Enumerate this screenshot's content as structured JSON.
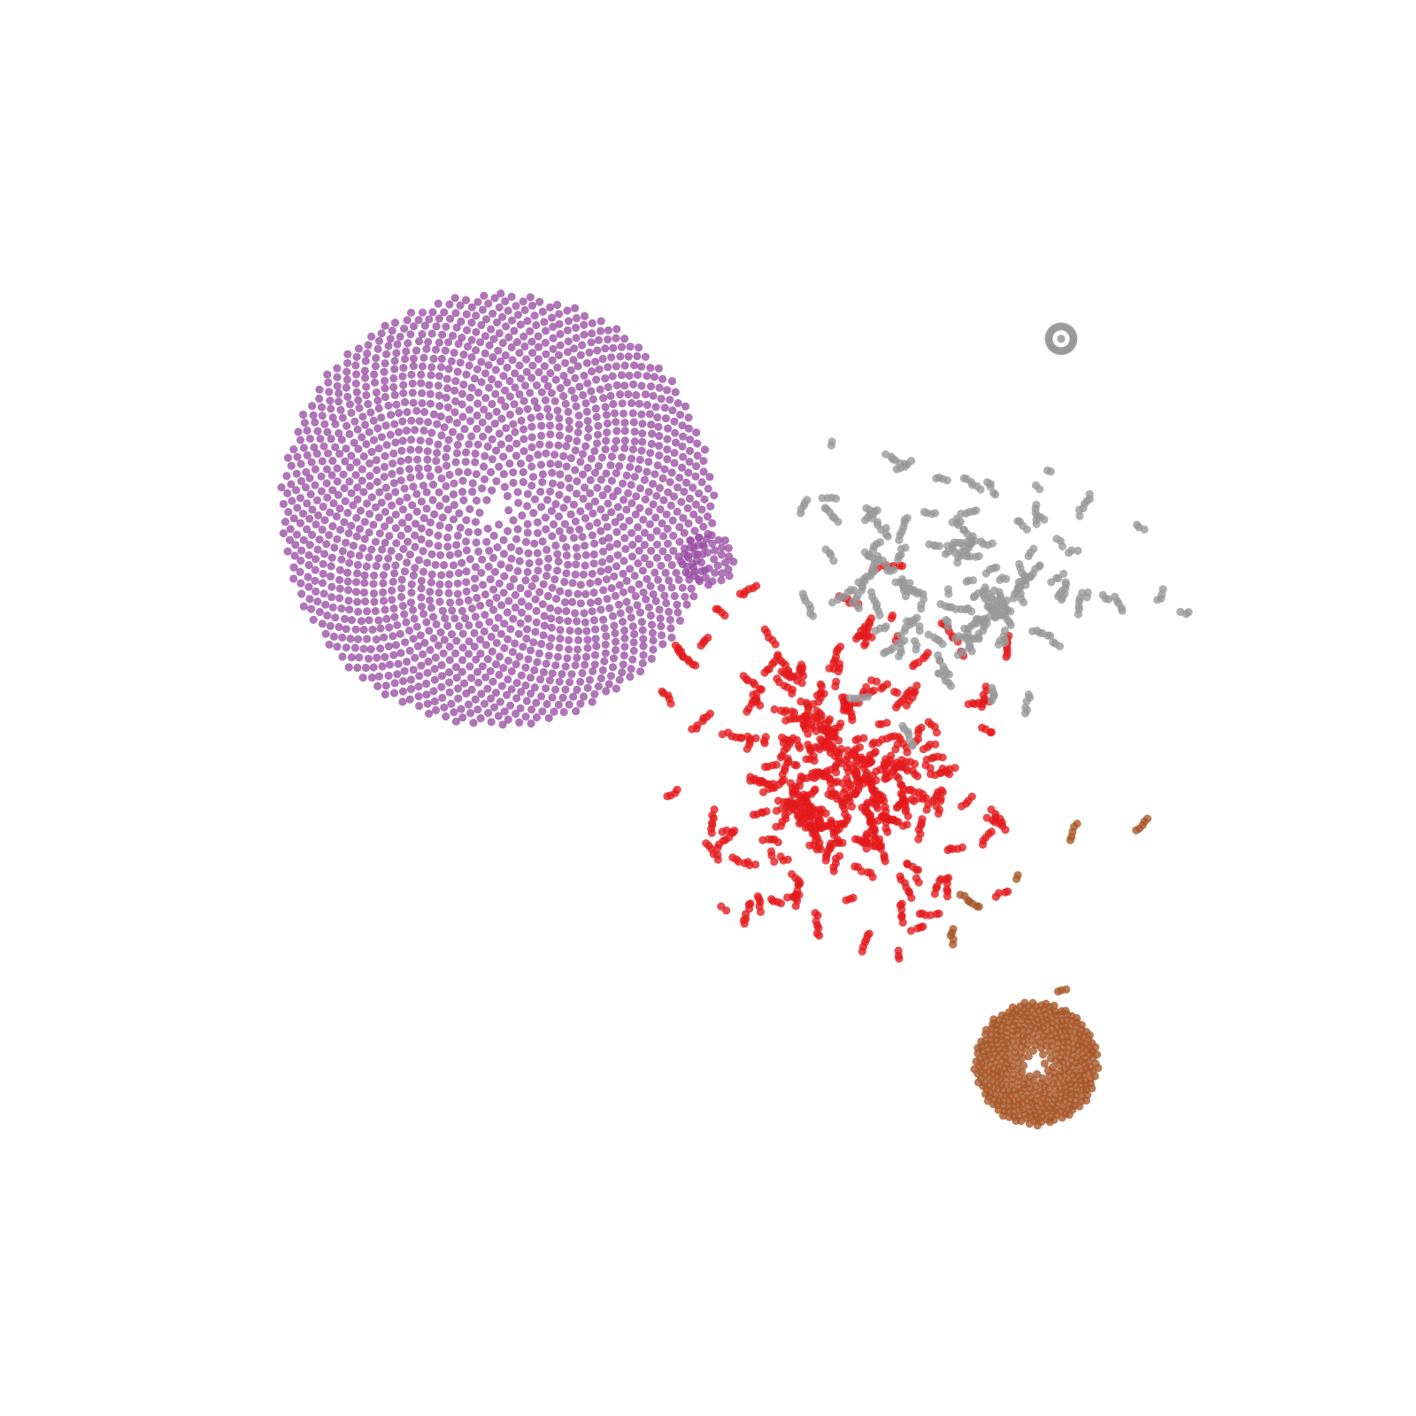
{
  "chart_data": {
    "type": "scatter",
    "title": "",
    "xlabel": "",
    "ylabel": "",
    "axes_visible": false,
    "grid": false,
    "legend": "none",
    "xlim": [
      0,
      100
    ],
    "ylim": [
      0,
      100
    ],
    "clusters": [
      {
        "id": "purple-cluster",
        "color": "#984ea3",
        "layout": "sunflower",
        "center": [
          33,
          66
        ],
        "radius": 17.5,
        "inner_ring_radius": 0.6,
        "count": 1800,
        "bulge": {
          "center": [
            50,
            62
          ],
          "radius": 2.2,
          "count": 40
        }
      },
      {
        "id": "brown-cluster",
        "color": "#a65628",
        "layout": "sunflower",
        "center": [
          76.5,
          21.3
        ],
        "radius": 5.0,
        "inner_ring_radius": 0.55,
        "count": 420
      },
      {
        "id": "red-cluster",
        "color": "#e41a1c",
        "layout": "clumps",
        "center": [
          61.5,
          44.5
        ],
        "spread": [
          8.5,
          9.5
        ],
        "clumps": 210
      },
      {
        "id": "gray-cluster",
        "color": "#999999",
        "layout": "clumps",
        "center": [
          71,
          60
        ],
        "spread": [
          10,
          8
        ],
        "clumps": 110
      },
      {
        "id": "gray-ring",
        "color": "#999999",
        "layout": "ring",
        "center": [
          78.5,
          79.8
        ],
        "radius": 1.0,
        "count": 26
      },
      {
        "id": "brown-small-groups",
        "color": "#a65628",
        "layout": "fixed-groups",
        "groups": [
          [
            79.5,
            40.0
          ],
          [
            75.0,
            36.3
          ],
          [
            71.2,
            34.4
          ],
          [
            69.7,
            31.6
          ],
          [
            85.0,
            40.6
          ],
          [
            78.6,
            27.1
          ]
        ]
      },
      {
        "id": "red-ring-groups",
        "color": "#e41a1c",
        "layout": "fixed-groups",
        "groups": [
          [
            51.0,
            57.8
          ],
          [
            49.7,
            55.4
          ],
          [
            48.3,
            54.0
          ],
          [
            53.2,
            59.5
          ],
          [
            46.7,
            50.9
          ]
        ]
      }
    ]
  }
}
